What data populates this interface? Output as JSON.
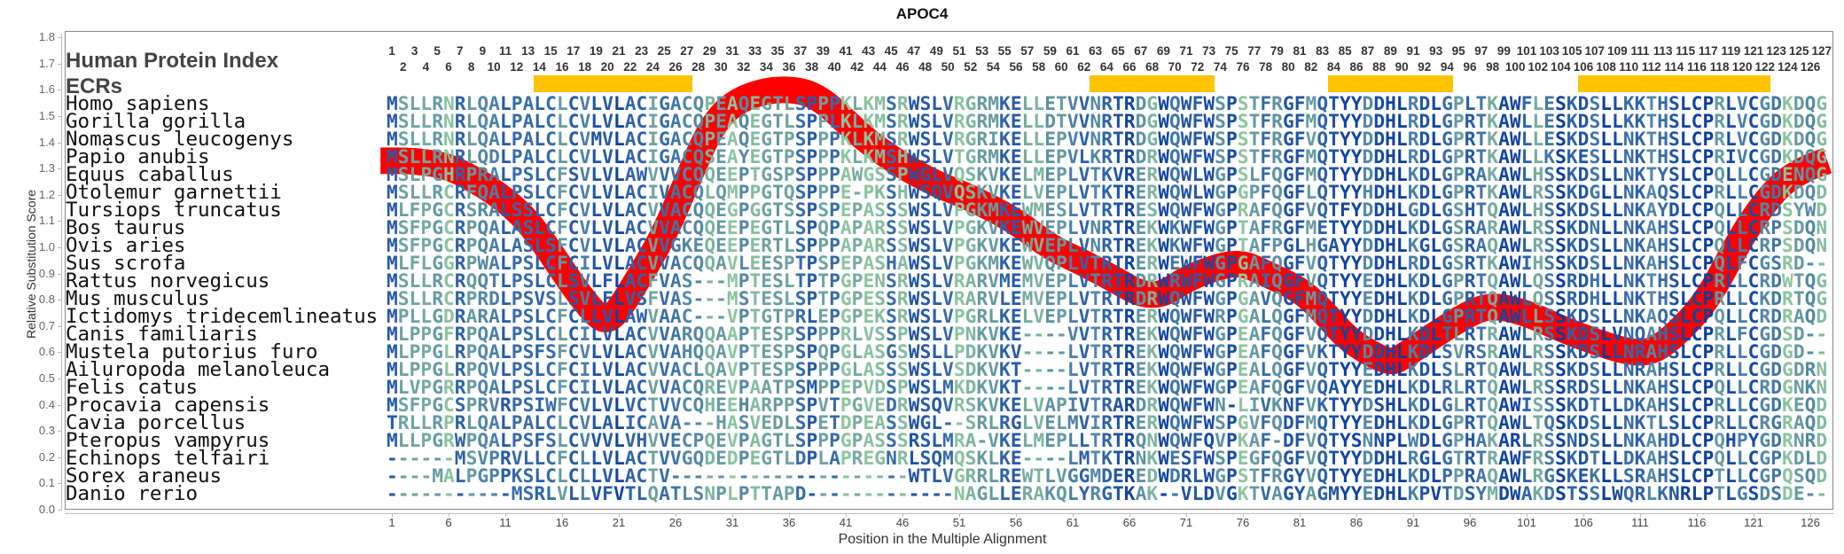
{
  "title": "APOC4",
  "header": {
    "protein_index_label": "Human Protein Index",
    "ecr_label": "ECRs"
  },
  "colors": {
    "curve": "#ff0000",
    "ecr": "#ffc300",
    "conserved": "#0a3d9c",
    "variable": "#8cc49e"
  },
  "ecrs": [
    [
      14,
      27
    ],
    [
      63,
      73
    ],
    [
      84,
      94
    ],
    [
      106,
      122
    ]
  ],
  "alignment": [
    {
      "species": "Homo sapiens",
      "seq": "MSLLRNRLQALPALCLCVLVLACIGACQPEAQEGTLSPPPKLKMSRWSLVRGRMKELLETVVNRTRDGWQWFWSPSTFRGFMQTYYDDHLRDLGPLTKAWFLESKDSLLKKTHSLCPRLVCGDKDQG"
    },
    {
      "species": "Gorilla gorilla",
      "seq": "MSLLRNRLQALPALCLCVLVLACIGACQPEAQEGTLSPPLKLKMSRWSLVRGRMKELLDTVVNRTRDGWQWFWSPSTFRGFMQTYYDDHLRDLGPRTKAWLLESKDSLLKKTHSLCPRLVCGDKDQG"
    },
    {
      "species": "Nomascus leucogenys",
      "seq": "MSLLRNRLQALPALCLCVMVLACIGACQPEAQEGTPSPPPKLKMSRWSLVRGRIKELLEPVVNRTRDGWQWFWSPSTFRGFVQTYYDDHLRDLGPRTKAWLLESKDSLLNKTHSLCPRLVCGDKDQG"
    },
    {
      "species": "Papio anubis",
      "seq": "MSLLRNRLQDLPALCLCVLVLACIGACQSEAYEGTPSPPPKLKMSHWSLVTGRMKELLEPVLKRTRDRWQWFWSPSTFRGFMQTYYDDHLRDLGPRTKAWLLKSKESLLNKTHSLCPRIVCGDKDQG"
    },
    {
      "species": "Equus caballus",
      "seq": "MSLPGHRPRALPSLCFSVLVLAWVVVCQQEEPTGSPSPPPAWGSSPWGLVQSKVKELMEPLVTKVRERWQWLWGPSLFQGFMQTYYDDHLKDLGPRAKAWLHSSKDSLLNKTYSLCPQLLCGDENQG"
    },
    {
      "species": "Otolemur garnettii",
      "seq": "MSLLRCRFQALPSLCFCVLVLACIVACQLQMPPGTQSPPPE-PKSHWSQVQSKVKELVEPLVTKTRERWQWLWGPGPFQGFLQTYYHDHLKDLGPRTKAWLRSSKDGLLNKAQSLCPRLLCGDKDQD"
    },
    {
      "species": "Tursiops truncatus",
      "seq": "MLFPGCRSRALSSLCFCVLVLACVVACQQEGPGGTSSPSPEPASSSWSLVPGKMKEWMESLVTRTRESWQWFWGPRAFQGFVQTFYDDHLGDLGSHTQAWLHSSKDSLLNKAYDLCPQLLCRDSYWD"
    },
    {
      "species": "Bos taurus",
      "seq": "MSFPGCRPQALASLCFCVLVLACVVACQQEEPEGTLSPQPAPARSSWSLVPGKVKEWVEPLVNRTREKWKWFWGPTAFRGFMETYYDDHLKDLGSRARAWLRSSKDNLLNKAHSLCPQLLCRPSDQN"
    },
    {
      "species": "Ovis aries",
      "seq": "MSFPGCRPQALASLSFCVLVLACVVGKEQEEPERTLSPPPAPARSSWSLVPGKVKEWVEPLVNRTREKWKWFWGPTAFPGLHGAYYDDHLKGLGSRAQAWLRSSKDSLLNKAHSLCPQLLCRPSDQN"
    },
    {
      "species": "Sus scrofa",
      "seq": "MLFLGGRPWALPSLCFCILVLACVVACQQAVLEESPTPSPEPASHAWSLVPGKMKEWVQPLVTRTRERWEWFWGPGAFQGFVQTYYDDHLRDLGSRTKAWIHSSKDSLLNKAHSLCPQLFCGSRD--"
    },
    {
      "species": "Rattus norvegicus",
      "seq": "MSLLRCRQQTLPSLCLSVLFLACFVAS---MPTESLTPTPGPENSRWSLVRARVMEMVEPLVTRTRDRWRWFWGPRAIQGFVQTYYEDHLKDLGPRTQAWLQSSRDHLLNKTHSLCPRLLCRDWTQG"
    },
    {
      "species": "Mus musculus",
      "seq": "MSLLRCRPRDLPSVSLSVLFLVSFVAS---MSTESLSPTPGPESSRWSLVRARVLEMVEPLVTRTRDRWQWFWGPGAVQGFMQTYYEDHLKDLGPRTQAWLQSSRDHLLNKTHSLCPRLLCKDRTQG"
    },
    {
      "species": "Ictidomys tridecemlineatus",
      "seq": "MPLLGDRARALPSLCFCLLVLAWVAAC---VPTGTPRLEPGPEKSRWSLVPGRLKELVEPLVTRTRERWQWFWRPGALQGFMQTYYDDHLKDLGPRTQAWLLSSKDSLLNKAQSLCPQLLCRDRAQD"
    },
    {
      "species": "Canis familiaris",
      "seq": "MLPPGFRPQALPSLCLCILVLACVVARQQAAPTESPSPPPRLVSSPWSLVPNKVKE----VVTRTREKWQWFWGPEAFQGFVQTYYDDHLKDLTLRTRAWLRSSKDSLVNQAHSLCPRLFCGDSD--"
    },
    {
      "species": "Mustela putorius furo",
      "seq": "MLPPGLRPQALPSFSFCVLVLACVVAHQQAVPTESPSPQPGLASGSWSLLPDKVKV----LVTRTREKWQWFWGPEAFQGFVKTYYDDHLKDLSVRSRAWLRSSKDSLLNRAHSLCPRLLCGDGD--"
    },
    {
      "species": "Ailuropoda melanoleuca",
      "seq": "MLPPGLRPQVLPSLCFCILVLACVVACLQAVPTESPSPPPGLASSSWSLVSDKVKT----LVTRTREKWQWFWGPEALQGFVQTYYEDHLKDLSLRTQAWLRSSKDSLLNRAHSLCPRLLCGDGDRN"
    },
    {
      "species": "Felis catus",
      "seq": "MLVPGRRPQALPSLCFCILVLACVVACQREVPAATPSMPPEPVDSPWSLMKDKVKT----LVTRTREKWQWFWGPEAFQGFVQAYYEDHLKDLRLRTQAWLRSSRDSLLNKAHSLCPQLLCRDGNKN"
    },
    {
      "species": "Procavia capensis",
      "seq": "MSFPGCSPRVRPSIWFCVLVLVCTVVCQHEEHARPPSPVTPGVEDRWSQVRSKVKELVAPIVTRARDRWQWFWN-LIVKNFVKTYYDSHLKDLGLRTQAWISSSKDTLLDKAHSLCPRLLCGDKEQD"
    },
    {
      "species": "Cavia porcellus",
      "seq": "TRLLRPRLQALPALCLCVLALICAVA---HASVEDLSPETDPEASSWGL--SRLRGLVELMVIRTRERWQWFWSPGVFQDFMQTYYEDHLKDLGPRTQAWLTQSKDSLLNKTLSLCPRLLCRGRAQD"
    },
    {
      "species": "Pteropus vampyrus",
      "seq": "MLLPGRWPQALPSFSLCVVVLVHVVECPQEVPAGTLSPPPGPASSSRSLMRA-VKELMEPLLTRTRQNWQWFQVPKAF-DFVQTYSNNPLWDLGPHAKARLRSSNDSLLNKAHDLCPQHPYGDRNRD"
    },
    {
      "species": "Echinops telfairi",
      "seq": "------MSVPRVLLCFCLLVLACTVVGQDEDPEGTLDPLAPREGNRLSQMQSKLKE----LMTKTRNKWESFWSPEGFQGFVQTYYDDHLRGLGTRTRAWFRSSKDTLLDKAHSLCPQLLCGPKDLD"
    },
    {
      "species": "Sorex araneus",
      "seq": "----MALPGPPKSLCLCLLVLACTV---------------------WTLVGRRLREWTLVGGMDEREDWDRLWGPSTFRGYVQTYYEDHLKDLPPRAQAWLRGSKEKLLSRAHSLCPTLLCGPQSQD"
    },
    {
      "species": "Danio rerio",
      "seq": "-----------MSRLVLLVFVTLQATLSNPLPTTAPD-------------NAGLLERAKQLYRGTKAK--VLDVGKTVAGYAGMYYEDHLKPVTDSYMDWAKDSTSSLWQRLKNRLPTLGSDSDE--"
    }
  ],
  "chart_data": {
    "type": "line",
    "title": "APOC4",
    "xlabel": "Position in the Multiple Alignment",
    "ylabel": "Relative Substitution Score",
    "ylim": [
      0,
      1.8
    ],
    "yticks": [
      "0.0",
      "0.1",
      "0.2",
      "0.3",
      "0.4",
      "0.5",
      "0.6",
      "0.7",
      "0.8",
      "0.9",
      "1.0",
      "1.1",
      "1.2",
      "1.3",
      "1.4",
      "1.5",
      "1.6",
      "1.7",
      "1.8"
    ],
    "xlim": [
      0,
      127.5
    ],
    "xticks": [
      "1",
      "6",
      "11",
      "16",
      "21",
      "26",
      "31",
      "36",
      "41",
      "46",
      "51",
      "56",
      "61",
      "66",
      "71",
      "76",
      "81",
      "86",
      "91",
      "96",
      "101",
      "106",
      "111",
      "116",
      "121",
      "126"
    ],
    "grid": false,
    "series": [
      {
        "name": "Relative Substitution Score",
        "x": [
          0,
          3,
          6,
          9,
          11,
          13,
          15,
          17,
          19,
          20,
          21,
          23,
          25,
          27,
          29,
          31,
          34,
          37,
          39,
          41,
          43,
          46,
          49,
          52,
          56,
          59,
          62,
          65,
          67,
          69,
          71,
          74,
          76,
          78,
          81,
          83,
          85,
          87,
          89,
          90,
          93,
          96,
          98,
          101,
          104,
          107,
          110,
          112,
          114,
          117,
          120,
          123,
          125.5,
          127.5
        ],
        "y": [
          1.33,
          1.33,
          1.31,
          1.24,
          1.18,
          1.1,
          0.98,
          0.85,
          0.74,
          0.72,
          0.76,
          0.9,
          1.05,
          1.25,
          1.45,
          1.55,
          1.6,
          1.6,
          1.56,
          1.48,
          1.4,
          1.31,
          1.24,
          1.19,
          1.1,
          1.0,
          0.94,
          0.87,
          0.82,
          0.82,
          0.88,
          0.93,
          0.94,
          0.9,
          0.84,
          0.76,
          0.66,
          0.6,
          0.56,
          0.58,
          0.67,
          0.75,
          0.78,
          0.75,
          0.69,
          0.64,
          0.6,
          0.6,
          0.66,
          0.8,
          1.05,
          1.23,
          1.3,
          1.33
        ]
      }
    ]
  }
}
